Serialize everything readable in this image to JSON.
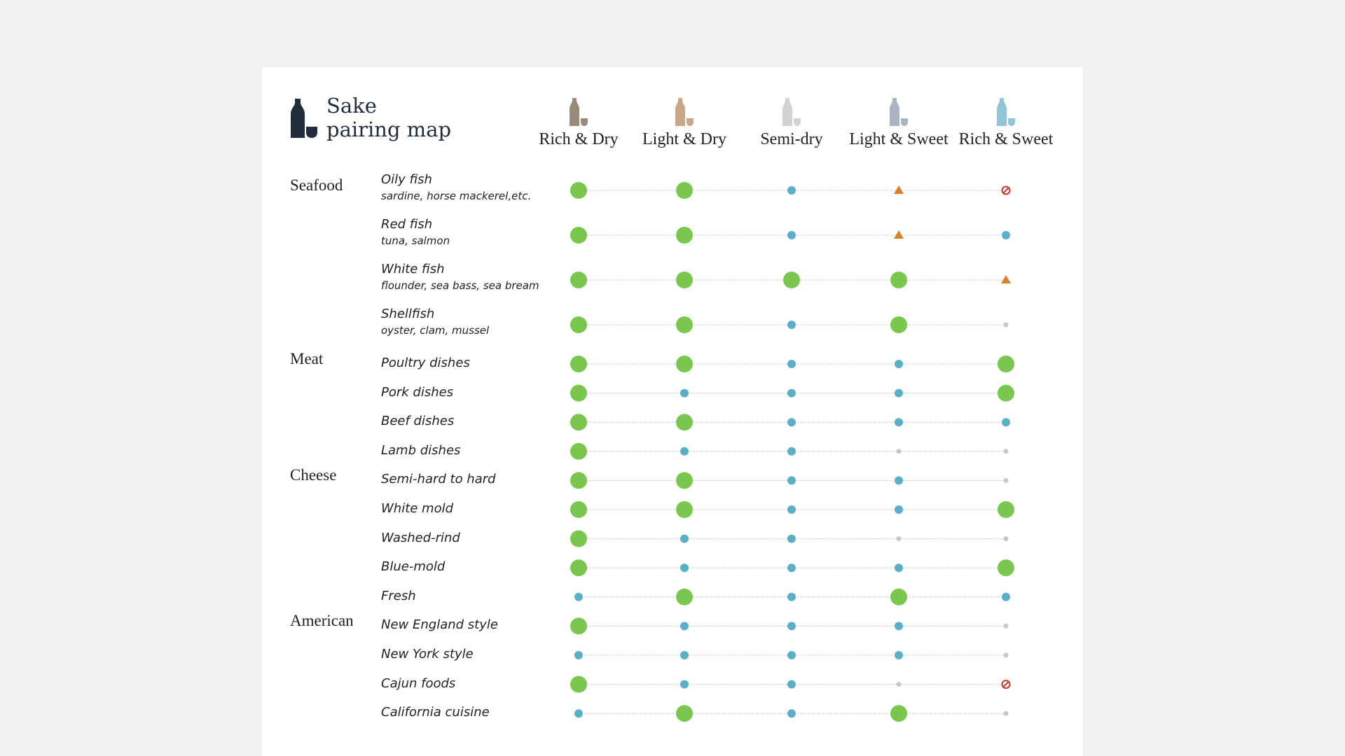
{
  "title": {
    "line1": "Sake",
    "line2": "pairing map"
  },
  "colors": {
    "great": "#7ac74f",
    "good": "#5aafc8",
    "fair": "#d9822b",
    "none": "#c8c8c8",
    "avoid": "#c0392b",
    "title_icon": "#1f2d3d"
  },
  "legend_levels": [
    "great",
    "good",
    "fair",
    "none",
    "avoid"
  ],
  "chart_data": {
    "type": "table",
    "columns": [
      {
        "label": "Rich & Dry",
        "icon_color": "#9a8a7a"
      },
      {
        "label": "Light & Dry",
        "icon_color": "#c8a888"
      },
      {
        "label": "Semi-dry",
        "icon_color": "#d2d2d2"
      },
      {
        "label": "Light & Sweet",
        "icon_color": "#a8b6c0"
      },
      {
        "label": "Rich & Sweet",
        "icon_color": "#94c4d8"
      }
    ],
    "groups": [
      {
        "label": "Seafood",
        "rows": [
          {
            "name": "Oily fish",
            "sub": "sardine, horse mackerel,etc.",
            "values": [
              "great",
              "great",
              "good",
              "fair",
              "avoid"
            ]
          },
          {
            "name": "Red fish",
            "sub": "tuna, salmon",
            "values": [
              "great",
              "great",
              "good",
              "fair",
              "good"
            ]
          },
          {
            "name": "White fish",
            "sub": "flounder, sea bass, sea bream",
            "values": [
              "great",
              "great",
              "great",
              "great",
              "fair"
            ]
          },
          {
            "name": "Shellfish",
            "sub": "oyster, clam, mussel",
            "values": [
              "great",
              "great",
              "good",
              "great",
              "none"
            ]
          }
        ]
      },
      {
        "label": "Meat",
        "rows": [
          {
            "name": "Poultry dishes",
            "values": [
              "great",
              "great",
              "good",
              "good",
              "great"
            ]
          },
          {
            "name": "Pork dishes",
            "values": [
              "great",
              "good",
              "good",
              "good",
              "great"
            ]
          },
          {
            "name": "Beef dishes",
            "values": [
              "great",
              "great",
              "good",
              "good",
              "good"
            ]
          },
          {
            "name": "Lamb dishes",
            "values": [
              "great",
              "good",
              "good",
              "none",
              "none"
            ]
          }
        ]
      },
      {
        "label": "Cheese",
        "rows": [
          {
            "name": "Semi-hard to hard",
            "values": [
              "great",
              "great",
              "good",
              "good",
              "none"
            ]
          },
          {
            "name": "White mold",
            "values": [
              "great",
              "great",
              "good",
              "good",
              "great"
            ]
          },
          {
            "name": "Washed-rind",
            "values": [
              "great",
              "good",
              "good",
              "none",
              "none"
            ]
          },
          {
            "name": "Blue-mold",
            "values": [
              "great",
              "good",
              "good",
              "good",
              "great"
            ]
          },
          {
            "name": "Fresh",
            "values": [
              "good",
              "great",
              "good",
              "great",
              "good"
            ]
          }
        ]
      },
      {
        "label": "American",
        "rows": [
          {
            "name": "New England style",
            "values": [
              "great",
              "good",
              "good",
              "good",
              "none"
            ]
          },
          {
            "name": "New York style",
            "values": [
              "good",
              "good",
              "good",
              "good",
              "none"
            ]
          },
          {
            "name": "Cajun foods",
            "values": [
              "great",
              "good",
              "good",
              "none",
              "avoid"
            ]
          },
          {
            "name": "California cuisine",
            "values": [
              "good",
              "great",
              "good",
              "great",
              "none"
            ]
          }
        ]
      }
    ]
  }
}
